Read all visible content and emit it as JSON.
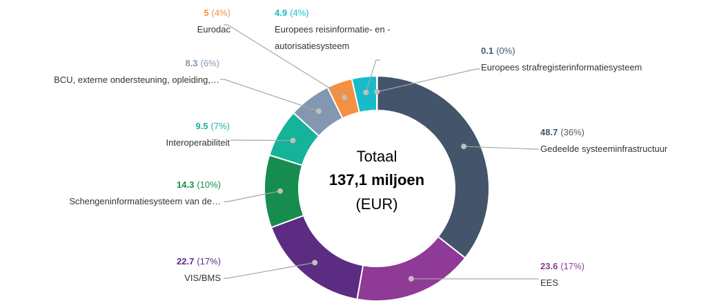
{
  "chart_data": {
    "type": "donut",
    "center_text": [
      "Totaal",
      "137,1 miljoen",
      "(EUR)"
    ],
    "categories": [
      "Europees strafregisterinformatiesysteem",
      "Gedeelde systeeminfrastructuur",
      "EES",
      "VIS/BMS",
      "Schengeninformatiesysteem van de…",
      "Interoperabiliteit",
      "BCU, externe ondersteuning, opleiding,…",
      "Eurodac",
      "Europees reisinformatie- en -\nautorisatiesysteem"
    ],
    "values": [
      0.1,
      48.7,
      23.6,
      22.7,
      14.3,
      9.5,
      8.3,
      5,
      4.9
    ],
    "percent_labels": [
      "(0%)",
      "(36%)",
      "(17%)",
      "(17%)",
      "(10%)",
      "(7%)",
      "(6%)",
      "(4%)",
      "(4%)"
    ],
    "colors": [
      "#44546a",
      "#44546a",
      "#8e3a96",
      "#5b2c82",
      "#168c4e",
      "#14b39a",
      "#8497b0",
      "#f39041",
      "#17bcc8"
    ]
  }
}
